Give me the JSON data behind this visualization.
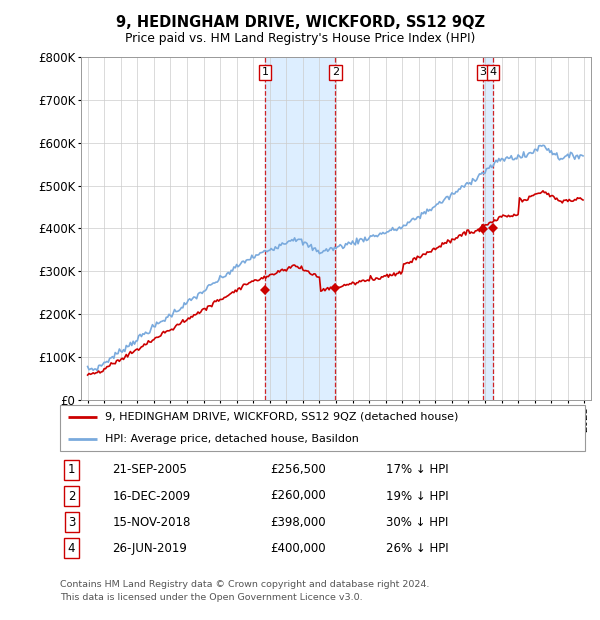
{
  "title": "9, HEDINGHAM DRIVE, WICKFORD, SS12 9QZ",
  "subtitle": "Price paid vs. HM Land Registry's House Price Index (HPI)",
  "footer1": "Contains HM Land Registry data © Crown copyright and database right 2024.",
  "footer2": "This data is licensed under the Open Government Licence v3.0.",
  "legend_line1": "9, HEDINGHAM DRIVE, WICKFORD, SS12 9QZ (detached house)",
  "legend_line2": "HPI: Average price, detached house, Basildon",
  "table": [
    {
      "num": "1",
      "date": "21-SEP-2005",
      "price": "£256,500",
      "pct": "17% ↓ HPI"
    },
    {
      "num": "2",
      "date": "16-DEC-2009",
      "price": "£260,000",
      "pct": "19% ↓ HPI"
    },
    {
      "num": "3",
      "date": "15-NOV-2018",
      "price": "£398,000",
      "pct": "30% ↓ HPI"
    },
    {
      "num": "4",
      "date": "26-JUN-2019",
      "price": "£400,000",
      "pct": "26% ↓ HPI"
    }
  ],
  "sale_dates_num": [
    2005.72,
    2009.96,
    2018.87,
    2019.48
  ],
  "sale_prices": [
    256500,
    260000,
    398000,
    400000
  ],
  "sale_labels": [
    "1",
    "2",
    "3",
    "4"
  ],
  "hpi_color": "#7aaadd",
  "price_color": "#cc0000",
  "marker_color": "#cc0000",
  "vline_color": "#cc0000",
  "shade_color": "#ddeeff",
  "ylim": [
    0,
    800000
  ],
  "yticks": [
    0,
    100000,
    200000,
    300000,
    400000,
    500000,
    600000,
    700000,
    800000
  ],
  "ytick_labels": [
    "£0",
    "£100K",
    "£200K",
    "£300K",
    "£400K",
    "£500K",
    "£600K",
    "£700K",
    "£800K"
  ],
  "xlim_start": 1994.6,
  "xlim_end": 2025.4
}
